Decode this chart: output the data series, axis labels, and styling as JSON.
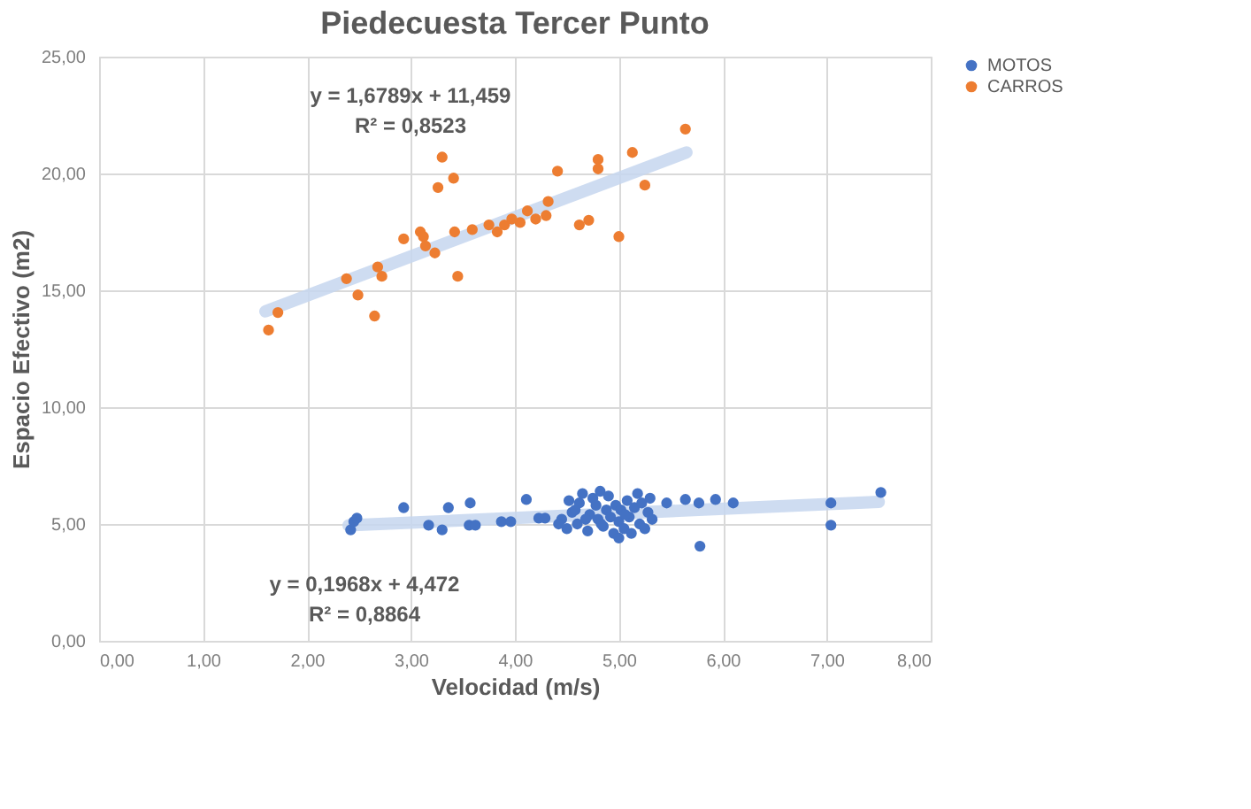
{
  "chart_data": {
    "type": "scatter",
    "title": "Piedecuesta Tercer Punto",
    "xlabel": "Velocidad (m/s)",
    "ylabel": "Espacio Efectivo (m2)",
    "xlim": [
      0,
      8
    ],
    "xticks": [
      {
        "value": 0,
        "label": "0,00"
      },
      {
        "value": 1,
        "label": "1,00"
      },
      {
        "value": 2,
        "label": "2,00"
      },
      {
        "value": 3,
        "label": "3,00"
      },
      {
        "value": 4,
        "label": "4,00"
      },
      {
        "value": 5,
        "label": "5,00"
      },
      {
        "value": 6,
        "label": "6,00"
      },
      {
        "value": 7,
        "label": "7,00"
      },
      {
        "value": 8,
        "label": "8,00"
      }
    ],
    "ylim": [
      0,
      25
    ],
    "yticks": [
      {
        "value": 0,
        "label": "0,00"
      },
      {
        "value": 5,
        "label": "5,00"
      },
      {
        "value": 10,
        "label": "10,00"
      },
      {
        "value": 15,
        "label": "15,00"
      },
      {
        "value": 20,
        "label": "20,00"
      },
      {
        "value": 25,
        "label": "25,00"
      }
    ],
    "grid": true,
    "legend": "right",
    "marker": "circle",
    "series": [
      {
        "name": "MOTOS",
        "color": "#4472c4",
        "x": [
          2.42,
          2.45,
          2.48,
          2.93,
          3.17,
          3.3,
          3.36,
          3.57,
          3.56,
          3.62,
          3.87,
          3.96,
          4.11,
          4.23,
          4.29,
          4.45,
          4.5,
          4.55,
          4.6,
          4.62,
          4.65,
          4.7,
          4.72,
          4.75,
          4.78,
          4.8,
          4.82,
          4.85,
          4.88,
          4.9,
          4.92,
          4.95,
          4.97,
          5.0,
          5.0,
          5.02,
          5.05,
          5.08,
          5.1,
          5.12,
          5.15,
          5.18,
          5.2,
          5.22,
          5.25,
          5.28,
          5.3,
          5.32,
          4.58,
          4.68,
          4.83,
          5.06,
          4.42,
          4.52,
          5.46,
          5.64,
          5.77,
          5.93,
          6.1,
          7.04,
          7.04,
          7.52,
          5.78
        ],
        "values": [
          4.75,
          5.1,
          5.25,
          5.7,
          4.95,
          4.75,
          5.7,
          5.9,
          4.95,
          4.95,
          5.1,
          5.1,
          6.05,
          5.25,
          5.25,
          5.2,
          4.8,
          5.5,
          5.0,
          5.9,
          6.3,
          4.7,
          5.4,
          6.1,
          5.8,
          5.2,
          6.4,
          4.9,
          5.6,
          6.2,
          5.3,
          4.6,
          5.8,
          5.1,
          4.4,
          5.6,
          4.8,
          6.0,
          5.3,
          4.6,
          5.7,
          6.3,
          5.0,
          5.9,
          4.8,
          5.5,
          6.1,
          5.2,
          5.6,
          5.2,
          5.0,
          5.4,
          5.0,
          6.0,
          5.9,
          6.05,
          5.9,
          6.05,
          5.9,
          5.9,
          4.95,
          6.35,
          4.05
        ]
      },
      {
        "name": "CARROS",
        "color": "#ed7d31",
        "x": [
          1.63,
          1.72,
          2.38,
          2.49,
          2.65,
          2.68,
          2.72,
          2.93,
          3.09,
          3.12,
          3.14,
          3.23,
          3.26,
          3.3,
          3.41,
          3.45,
          3.42,
          3.59,
          3.75,
          3.9,
          4.05,
          4.2,
          4.3,
          4.12,
          3.97,
          3.83,
          4.41,
          4.32,
          4.62,
          4.71,
          4.8,
          4.8,
          5.0,
          5.13,
          5.25,
          5.64
        ],
        "values": [
          13.3,
          14.05,
          15.5,
          14.8,
          13.9,
          16.0,
          15.6,
          17.2,
          17.5,
          17.3,
          16.9,
          16.6,
          19.4,
          20.7,
          19.8,
          15.6,
          17.5,
          17.6,
          17.8,
          17.8,
          17.9,
          18.05,
          18.2,
          18.4,
          18.05,
          17.5,
          20.1,
          18.8,
          17.8,
          18.0,
          20.6,
          20.2,
          17.3,
          20.9,
          19.5,
          21.9
        ]
      },
      {
        "color": "#c5d6ee",
        "type": "line",
        "marker": "none",
        "line_style": "solid",
        "x": [
          2.4,
          7.5
        ],
        "values": [
          4.94,
          5.95
        ]
      },
      {
        "color": "#c5d6ee",
        "type": "line",
        "marker": "none",
        "line_style": "solid",
        "x": [
          1.6,
          5.65
        ],
        "values": [
          14.1,
          20.9
        ]
      }
    ],
    "annotations": [
      "y = 1,6789x + 11,459",
      "R² = 0,8523",
      "y = 0,1968x + 4,472",
      "R² = 0,8864"
    ]
  }
}
